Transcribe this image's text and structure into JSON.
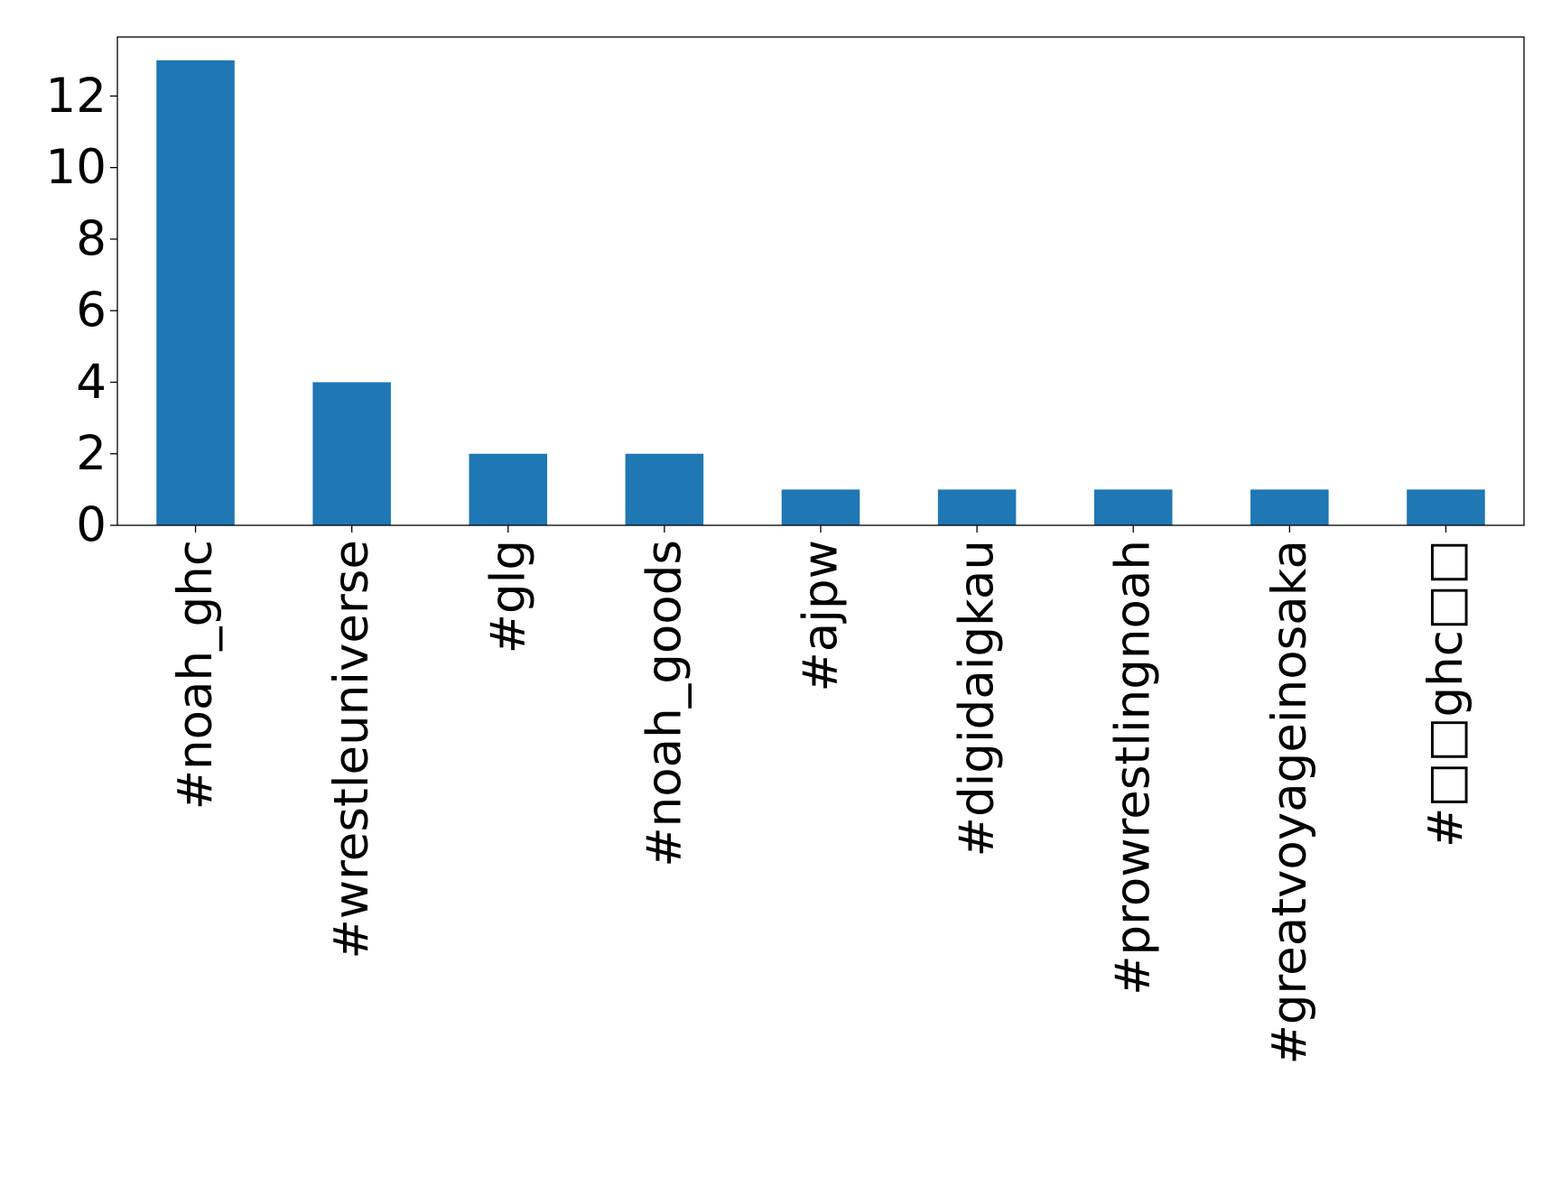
{
  "chart_data": {
    "type": "bar",
    "categories": [
      "#noah_ghc",
      "#wrestleuniverse",
      "#glg",
      "#noah_goods",
      "#ajpw",
      "#digidaigkau",
      "#prowrestlingnoah",
      "#greatvoyageinosaka",
      "#□□ghc□□"
    ],
    "values": [
      13,
      4,
      2,
      2,
      1,
      1,
      1,
      1,
      1
    ],
    "color": "#1f77b4",
    "ylim": [
      0,
      13.65
    ],
    "yticks": [
      0,
      2,
      4,
      6,
      8,
      10,
      12
    ],
    "grid": false
  }
}
